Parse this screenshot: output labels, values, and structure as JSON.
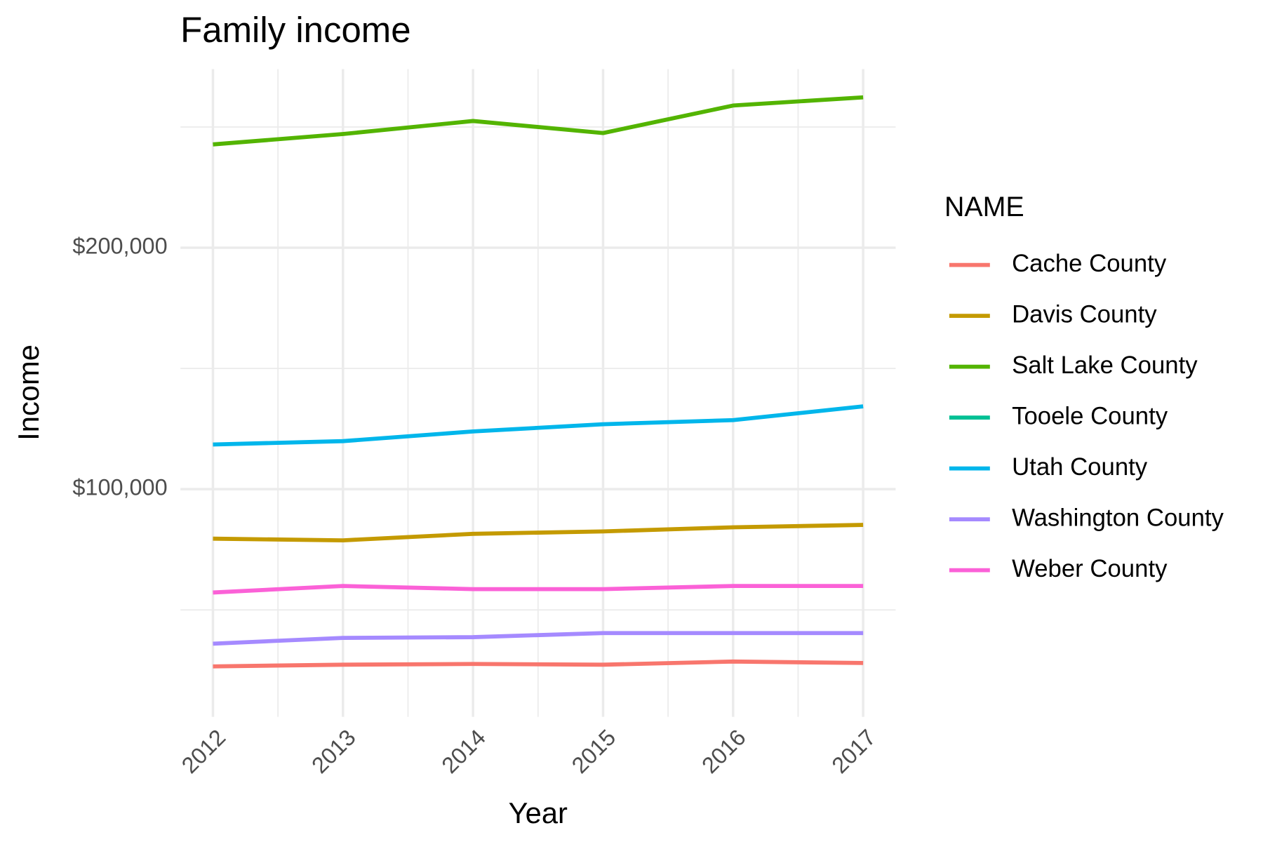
{
  "chart_data": {
    "type": "line",
    "title": "Family income",
    "x_label": "Year",
    "y_label": "Income",
    "legend_title": "NAME",
    "legend": "right",
    "grid": true,
    "x": [
      2012,
      2013,
      2014,
      2015,
      2016,
      2017
    ],
    "xlim": [
      2011.75,
      2017.25
    ],
    "xticks": [
      2012,
      2013,
      2014,
      2015,
      2016,
      2017
    ],
    "x_minor_ticks": [
      2012.5,
      2013.5,
      2014.5,
      2015.5,
      2016.5
    ],
    "ylim": [
      5700,
      274000
    ],
    "yticks": [
      {
        "value": 100000,
        "label": "$100,000"
      },
      {
        "value": 200000,
        "label": "$200,000"
      }
    ],
    "y_minor_ticks": [
      50000,
      150000,
      250000
    ],
    "series": [
      {
        "name": "Cache County",
        "color": "#F8766D",
        "values": [
          26600,
          27300,
          27600,
          27300,
          28600,
          28000
        ]
      },
      {
        "name": "Davis County",
        "color": "#C49A00",
        "values": [
          79500,
          78800,
          81500,
          82500,
          84200,
          85200
        ]
      },
      {
        "name": "Salt Lake County",
        "color": "#53B400",
        "values": [
          242800,
          247100,
          252500,
          247500,
          258900,
          262300
        ]
      },
      {
        "name": "Tooele County",
        "color": "#00C094",
        "values": [
          null,
          null,
          null,
          null,
          null,
          null
        ]
      },
      {
        "name": "Utah County",
        "color": "#00B6EB",
        "values": [
          118500,
          119900,
          123900,
          126900,
          128600,
          134300
        ]
      },
      {
        "name": "Washington County",
        "color": "#A58AFF",
        "values": [
          36000,
          38400,
          38700,
          40400,
          40400,
          40400
        ]
      },
      {
        "name": "Weber County",
        "color": "#FB61D7",
        "values": [
          57200,
          59900,
          58600,
          58600,
          59900,
          59900
        ]
      }
    ]
  }
}
